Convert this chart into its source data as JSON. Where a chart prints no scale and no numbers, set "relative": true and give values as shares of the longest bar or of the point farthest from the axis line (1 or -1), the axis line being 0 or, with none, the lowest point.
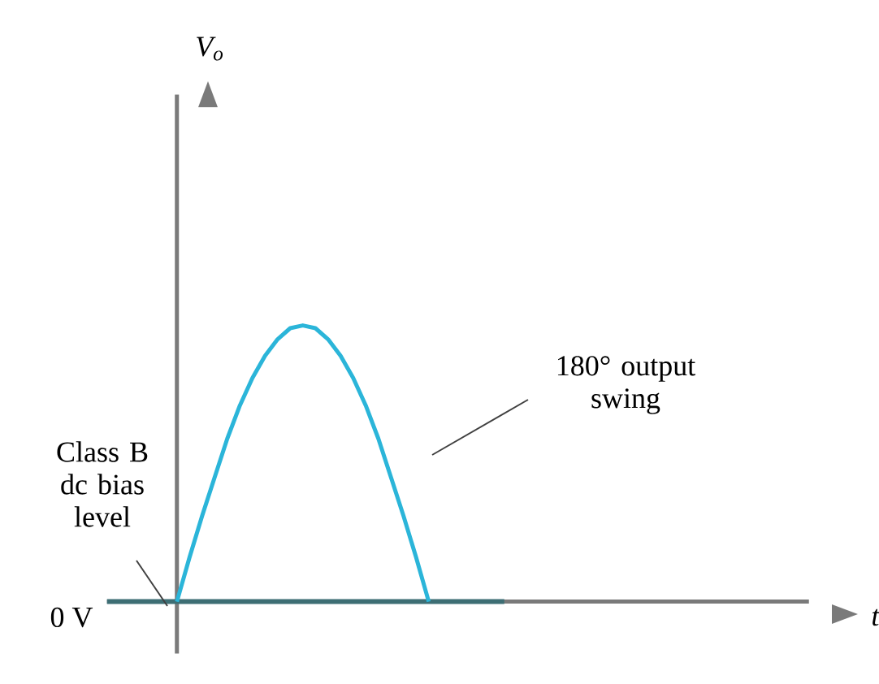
{
  "chart_data": {
    "type": "line",
    "relative": true,
    "categories": [
      null,
      null,
      null,
      null,
      null,
      null,
      null,
      null,
      null,
      null,
      null,
      null,
      null,
      null,
      null,
      null,
      null,
      null,
      null,
      null,
      null
    ],
    "series": [
      {
        "color": "#2bb5d9",
        "values": [
          0,
          0.16,
          0.31,
          0.45,
          0.59,
          0.71,
          0.81,
          0.89,
          0.95,
          0.99,
          1,
          0.99,
          0.95,
          0.89,
          0.81,
          0.71,
          0.59,
          0.45,
          0.31,
          0.16,
          0
        ]
      }
    ],
    "ref_lines": [
      {
        "axis": "y",
        "value": 0,
        "label": "Class B dc bias level",
        "color": "#3d6e74"
      }
    ],
    "annotations": [
      "180° output swing",
      "0 V",
      "V$_{o}$",
      "t"
    ],
    "marker": "none",
    "line_style": "solid"
  }
}
